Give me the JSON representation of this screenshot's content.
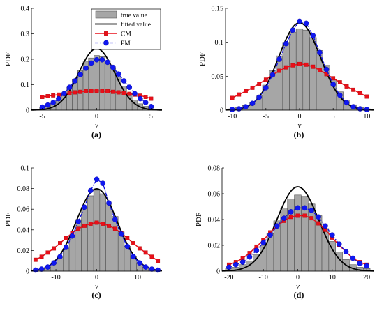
{
  "legend": {
    "entries": [
      {
        "key": "true",
        "label": "true value"
      },
      {
        "key": "fit",
        "label": "fitted value"
      },
      {
        "key": "cm",
        "label": "CM"
      },
      {
        "key": "pm",
        "label": "PM"
      }
    ],
    "placement": "top-right of panel (a)"
  },
  "colors": {
    "bars": "#a6a6a6",
    "fitted": "#000000",
    "CM": "#e8101a",
    "PM": "#1010e0"
  },
  "chart_data": [
    {
      "type": "bar",
      "panel": "(a)",
      "ylabel": "PDF",
      "xlabel": "v",
      "xlim": [
        -6,
        6
      ],
      "ylim": [
        0,
        0.4
      ],
      "xticks": [
        -5,
        0,
        5
      ],
      "yticks": [
        0,
        0.1,
        0.2,
        0.3,
        0.4
      ],
      "ytick_labels": [
        "0",
        "0.1",
        "0.2",
        "0.3",
        "0.4"
      ],
      "xtick_labels": [
        "-5",
        "0",
        "5"
      ],
      "hist": {
        "bin_width": 0.5,
        "centers": [
          -5,
          -4.5,
          -4,
          -3.5,
          -3,
          -2.5,
          -2,
          -1.5,
          -1,
          -0.5,
          0,
          0.5,
          1,
          1.5,
          2,
          2.5,
          3,
          3.5,
          4,
          4.5,
          5
        ],
        "values": [
          0.01,
          0.015,
          0.025,
          0.04,
          0.06,
          0.09,
          0.12,
          0.155,
          0.19,
          0.205,
          0.215,
          0.21,
          0.195,
          0.165,
          0.13,
          0.095,
          0.065,
          0.04,
          0.025,
          0.015,
          0.01
        ]
      },
      "fitted": {
        "mu": 0,
        "sigma": 1.65
      },
      "series": [
        {
          "name": "CM",
          "x": [
            -5,
            -4.5,
            -4,
            -3.5,
            -3,
            -2.5,
            -2,
            -1.5,
            -1,
            -0.5,
            0,
            0.5,
            1,
            1.5,
            2,
            2.5,
            3,
            3.5,
            4,
            4.5,
            5
          ],
          "values": [
            0.052,
            0.055,
            0.058,
            0.061,
            0.064,
            0.067,
            0.07,
            0.072,
            0.074,
            0.075,
            0.076,
            0.075,
            0.074,
            0.072,
            0.07,
            0.067,
            0.064,
            0.061,
            0.057,
            0.052,
            0.045
          ]
        },
        {
          "name": "PM",
          "x": [
            -5,
            -4.5,
            -4,
            -3.5,
            -3,
            -2.5,
            -2,
            -1.5,
            -1,
            -0.5,
            0,
            0.5,
            1,
            1.5,
            2,
            2.5,
            3,
            3.5,
            4,
            4.5,
            5
          ],
          "values": [
            0.012,
            0.02,
            0.03,
            0.045,
            0.065,
            0.09,
            0.115,
            0.14,
            0.165,
            0.185,
            0.198,
            0.198,
            0.188,
            0.168,
            0.142,
            0.115,
            0.09,
            0.065,
            0.045,
            0.03,
            0.014
          ]
        }
      ]
    },
    {
      "type": "bar",
      "panel": "(b)",
      "ylabel": "PDF",
      "xlabel": "v",
      "xlim": [
        -11,
        11
      ],
      "ylim": [
        0,
        0.15
      ],
      "xticks": [
        -10,
        -5,
        0,
        5,
        10
      ],
      "yticks": [
        0,
        0.05,
        0.1,
        0.15
      ],
      "ytick_labels": [
        "0",
        "0.05",
        "0.1",
        "0.15"
      ],
      "xtick_labels": [
        "-10",
        "-5",
        "0",
        "5",
        "10"
      ],
      "hist": {
        "bin_width": 1,
        "centers": [
          -10,
          -9,
          -8,
          -7,
          -6,
          -5,
          -4,
          -3,
          -2,
          -1,
          0,
          1,
          2,
          3,
          4,
          5,
          6,
          7,
          8,
          9,
          10
        ],
        "values": [
          0.002,
          0.004,
          0.007,
          0.012,
          0.022,
          0.037,
          0.058,
          0.08,
          0.1,
          0.115,
          0.12,
          0.118,
          0.107,
          0.088,
          0.066,
          0.045,
          0.027,
          0.015,
          0.008,
          0.004,
          0.002
        ]
      },
      "fitted": {
        "mu": 0,
        "sigma": 3.1
      },
      "series": [
        {
          "name": "CM",
          "x": [
            -10,
            -9,
            -8,
            -7,
            -6,
            -5,
            -4,
            -3,
            -2,
            -1,
            0,
            1,
            2,
            3,
            4,
            5,
            6,
            7,
            8,
            9,
            10
          ],
          "values": [
            0.018,
            0.023,
            0.028,
            0.033,
            0.039,
            0.045,
            0.052,
            0.058,
            0.063,
            0.066,
            0.068,
            0.067,
            0.064,
            0.059,
            0.053,
            0.047,
            0.041,
            0.035,
            0.03,
            0.025,
            0.02
          ]
        },
        {
          "name": "PM",
          "x": [
            -10,
            -9,
            -8,
            -7,
            -6,
            -5,
            -4,
            -3,
            -2,
            -1,
            0,
            1,
            2,
            3,
            4,
            5,
            6,
            7,
            8,
            9,
            10
          ],
          "values": [
            0.001,
            0.002,
            0.005,
            0.01,
            0.019,
            0.033,
            0.052,
            0.075,
            0.098,
            0.118,
            0.131,
            0.128,
            0.11,
            0.085,
            0.06,
            0.038,
            0.022,
            0.011,
            0.005,
            0.002,
            0.001
          ]
        }
      ]
    },
    {
      "type": "bar",
      "panel": "(c)",
      "ylabel": "PDF",
      "xlabel": "v",
      "xlim": [
        -16,
        16
      ],
      "ylim": [
        0,
        0.1
      ],
      "xticks": [
        -10,
        0,
        10
      ],
      "yticks": [
        0,
        0.02,
        0.04,
        0.06,
        0.08,
        0.1
      ],
      "ytick_labels": [
        "0",
        "0.02",
        "0.04",
        "0.06",
        "0.08",
        "0.1"
      ],
      "xtick_labels": [
        "-10",
        "0",
        "10"
      ],
      "hist": {
        "bin_width": 1.5,
        "centers": [
          -15,
          -13.5,
          -12,
          -10.5,
          -9,
          -7.5,
          -6,
          -4.5,
          -3,
          -1.5,
          0,
          1.5,
          3,
          4.5,
          6,
          7.5,
          9,
          10.5,
          12,
          13.5,
          15
        ],
        "values": [
          0.001,
          0.002,
          0.004,
          0.007,
          0.013,
          0.022,
          0.035,
          0.05,
          0.062,
          0.073,
          0.078,
          0.075,
          0.066,
          0.053,
          0.038,
          0.024,
          0.014,
          0.008,
          0.004,
          0.002,
          0.001
        ]
      },
      "fitted": {
        "mu": 0,
        "sigma": 5.0
      },
      "series": [
        {
          "name": "CM",
          "x": [
            -15,
            -13.5,
            -12,
            -10.5,
            -9,
            -7.5,
            -6,
            -4.5,
            -3,
            -1.5,
            0,
            1.5,
            3,
            4.5,
            6,
            7.5,
            9,
            10.5,
            12,
            13.5,
            15
          ],
          "values": [
            0.011,
            0.014,
            0.018,
            0.022,
            0.027,
            0.032,
            0.037,
            0.041,
            0.044,
            0.046,
            0.047,
            0.046,
            0.044,
            0.041,
            0.037,
            0.032,
            0.027,
            0.022,
            0.018,
            0.014,
            0.01
          ]
        },
        {
          "name": "PM",
          "x": [
            -15,
            -13.5,
            -12,
            -10.5,
            -9,
            -7.5,
            -6,
            -4.5,
            -3,
            -1.5,
            0,
            1.5,
            3,
            4.5,
            6,
            7.5,
            9,
            10.5,
            12,
            13.5,
            15
          ],
          "values": [
            0.001,
            0.002,
            0.004,
            0.008,
            0.014,
            0.023,
            0.034,
            0.048,
            0.062,
            0.078,
            0.089,
            0.085,
            0.066,
            0.05,
            0.036,
            0.024,
            0.014,
            0.008,
            0.004,
            0.002,
            0.001
          ]
        }
      ]
    },
    {
      "type": "bar",
      "panel": "(d)",
      "ylabel": "PDF",
      "xlabel": "v",
      "xlim": [
        -22,
        22
      ],
      "ylim": [
        0,
        0.08
      ],
      "xticks": [
        -20,
        -10,
        0,
        10,
        20
      ],
      "yticks": [
        0,
        0.02,
        0.04,
        0.06,
        0.08
      ],
      "ytick_labels": [
        "0",
        "0.02",
        "0.04",
        "0.06",
        "0.08"
      ],
      "xtick_labels": [
        "-20",
        "-10",
        "0",
        "10",
        "20"
      ],
      "hist": {
        "bin_width": 2,
        "centers": [
          -20,
          -18,
          -16,
          -14,
          -12,
          -10,
          -8,
          -6,
          -4,
          -2,
          0,
          2,
          4,
          6,
          8,
          10,
          12,
          14,
          16,
          18,
          20
        ],
        "values": [
          0.002,
          0.003,
          0.005,
          0.008,
          0.013,
          0.02,
          0.029,
          0.039,
          0.049,
          0.056,
          0.059,
          0.058,
          0.052,
          0.043,
          0.033,
          0.023,
          0.015,
          0.009,
          0.005,
          0.003,
          0.002
        ]
      },
      "fitted": {
        "mu": 0,
        "sigma": 6.1
      },
      "series": [
        {
          "name": "CM",
          "x": [
            -20,
            -18,
            -16,
            -14,
            -12,
            -10,
            -8,
            -6,
            -4,
            -2,
            0,
            2,
            4,
            6,
            8,
            10,
            12,
            14,
            16,
            18,
            20
          ],
          "values": [
            0.005,
            0.007,
            0.01,
            0.014,
            0.019,
            0.024,
            0.03,
            0.035,
            0.039,
            0.042,
            0.043,
            0.043,
            0.041,
            0.037,
            0.032,
            0.026,
            0.02,
            0.015,
            0.01,
            0.007,
            0.005
          ]
        },
        {
          "name": "PM",
          "x": [
            -20,
            -18,
            -16,
            -14,
            -12,
            -10,
            -8,
            -6,
            -4,
            -2,
            0,
            2,
            4,
            6,
            8,
            10,
            12,
            14,
            16,
            18,
            20
          ],
          "values": [
            0.003,
            0.005,
            0.007,
            0.011,
            0.016,
            0.022,
            0.028,
            0.035,
            0.041,
            0.046,
            0.049,
            0.049,
            0.047,
            0.042,
            0.035,
            0.028,
            0.021,
            0.015,
            0.01,
            0.006,
            0.004
          ]
        }
      ]
    }
  ]
}
